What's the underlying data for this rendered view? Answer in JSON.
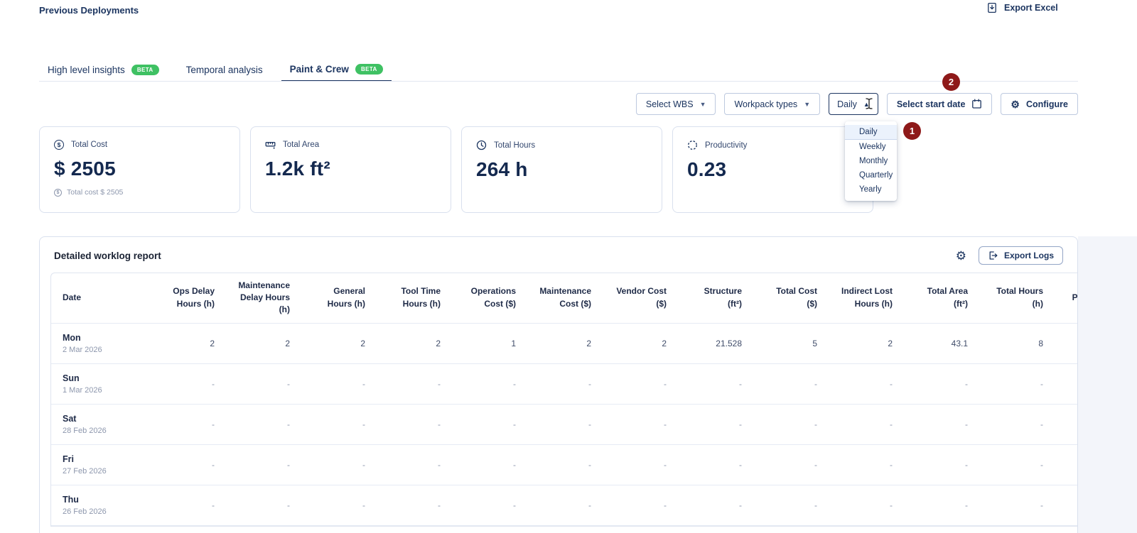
{
  "page": {
    "title": "Previous Deployments",
    "export_excel_label": "Export Excel"
  },
  "beta_label": "BETA",
  "tabs": [
    {
      "label": "High level insights",
      "beta": true,
      "active": false
    },
    {
      "label": "Temporal analysis",
      "beta": false,
      "active": false
    },
    {
      "label": "Paint & Crew",
      "beta": true,
      "active": true
    }
  ],
  "filters": {
    "select_wbs": "Select WBS",
    "workpack_types": "Workpack types",
    "period": "Daily",
    "select_start_date": "Select start date",
    "configure": "Configure"
  },
  "period_menu": {
    "options": [
      "Daily",
      "Weekly",
      "Monthly",
      "Quarterly",
      "Yearly"
    ],
    "selected": "Daily"
  },
  "annotations": {
    "badge1": "1",
    "badge2": "2"
  },
  "stat_cards": [
    {
      "title": "Total Cost",
      "value": "$ 2505",
      "subtext": "Total cost $ 2505",
      "icon": "dollar-circle"
    },
    {
      "title": "Total Area",
      "value": "1.2k ft²",
      "subtext": "",
      "icon": "ruler"
    },
    {
      "title": "Total Hours",
      "value": "264 h",
      "subtext": "",
      "icon": "clock"
    },
    {
      "title": "Productivity",
      "value": "0.23",
      "subtext": "",
      "icon": "dashed-circle"
    }
  ],
  "worklog": {
    "title": "Detailed worklog report",
    "export_logs_label": "Export Logs",
    "table": {
      "columns": [
        "Date",
        "Ops Delay Hours (h)",
        "Maintenance Delay Hours (h)",
        "General Hours (h)",
        "Tool Time Hours (h)",
        "Operations Cost ($)",
        "Maintenance Cost ($)",
        "Vendor Cost ($)",
        "Structure (ft²)",
        "Total Cost ($)",
        "Indirect Lost Hours (h)",
        "Total Area (ft²)",
        "Total Hours (h)",
        "Productivity"
      ],
      "rows": [
        {
          "day": "Mon",
          "date": "2 Mar 2026",
          "values": [
            "2",
            "2",
            "2",
            "2",
            "1",
            "2",
            "2",
            "21.528",
            "5",
            "2",
            "43.1",
            "8",
            ""
          ]
        },
        {
          "day": "Sun",
          "date": "1 Mar 2026",
          "values": [
            "-",
            "-",
            "-",
            "-",
            "-",
            "-",
            "-",
            "-",
            "-",
            "-",
            "-",
            "-",
            ""
          ]
        },
        {
          "day": "Sat",
          "date": "28 Feb 2026",
          "values": [
            "-",
            "-",
            "-",
            "-",
            "-",
            "-",
            "-",
            "-",
            "-",
            "-",
            "-",
            "-",
            ""
          ]
        },
        {
          "day": "Fri",
          "date": "27 Feb 2026",
          "values": [
            "-",
            "-",
            "-",
            "-",
            "-",
            "-",
            "-",
            "-",
            "-",
            "-",
            "-",
            "-",
            ""
          ]
        },
        {
          "day": "Thu",
          "date": "26 Feb 2026",
          "values": [
            "-",
            "-",
            "-",
            "-",
            "-",
            "-",
            "-",
            "-",
            "-",
            "-",
            "-",
            "-",
            ""
          ]
        }
      ]
    }
  },
  "colors": {
    "accent_navy": "#1c3560",
    "heading_dark": "#1a2233",
    "muted_gray": "#8d97ad",
    "beta_green": "#3fc163",
    "annotation_red": "#8e1919",
    "card_border": "#d9e0ee",
    "table_border": "#e6ebf4",
    "menu_selected_bg": "#ebf2fc",
    "right_band_bg": "#f3f5fa"
  }
}
